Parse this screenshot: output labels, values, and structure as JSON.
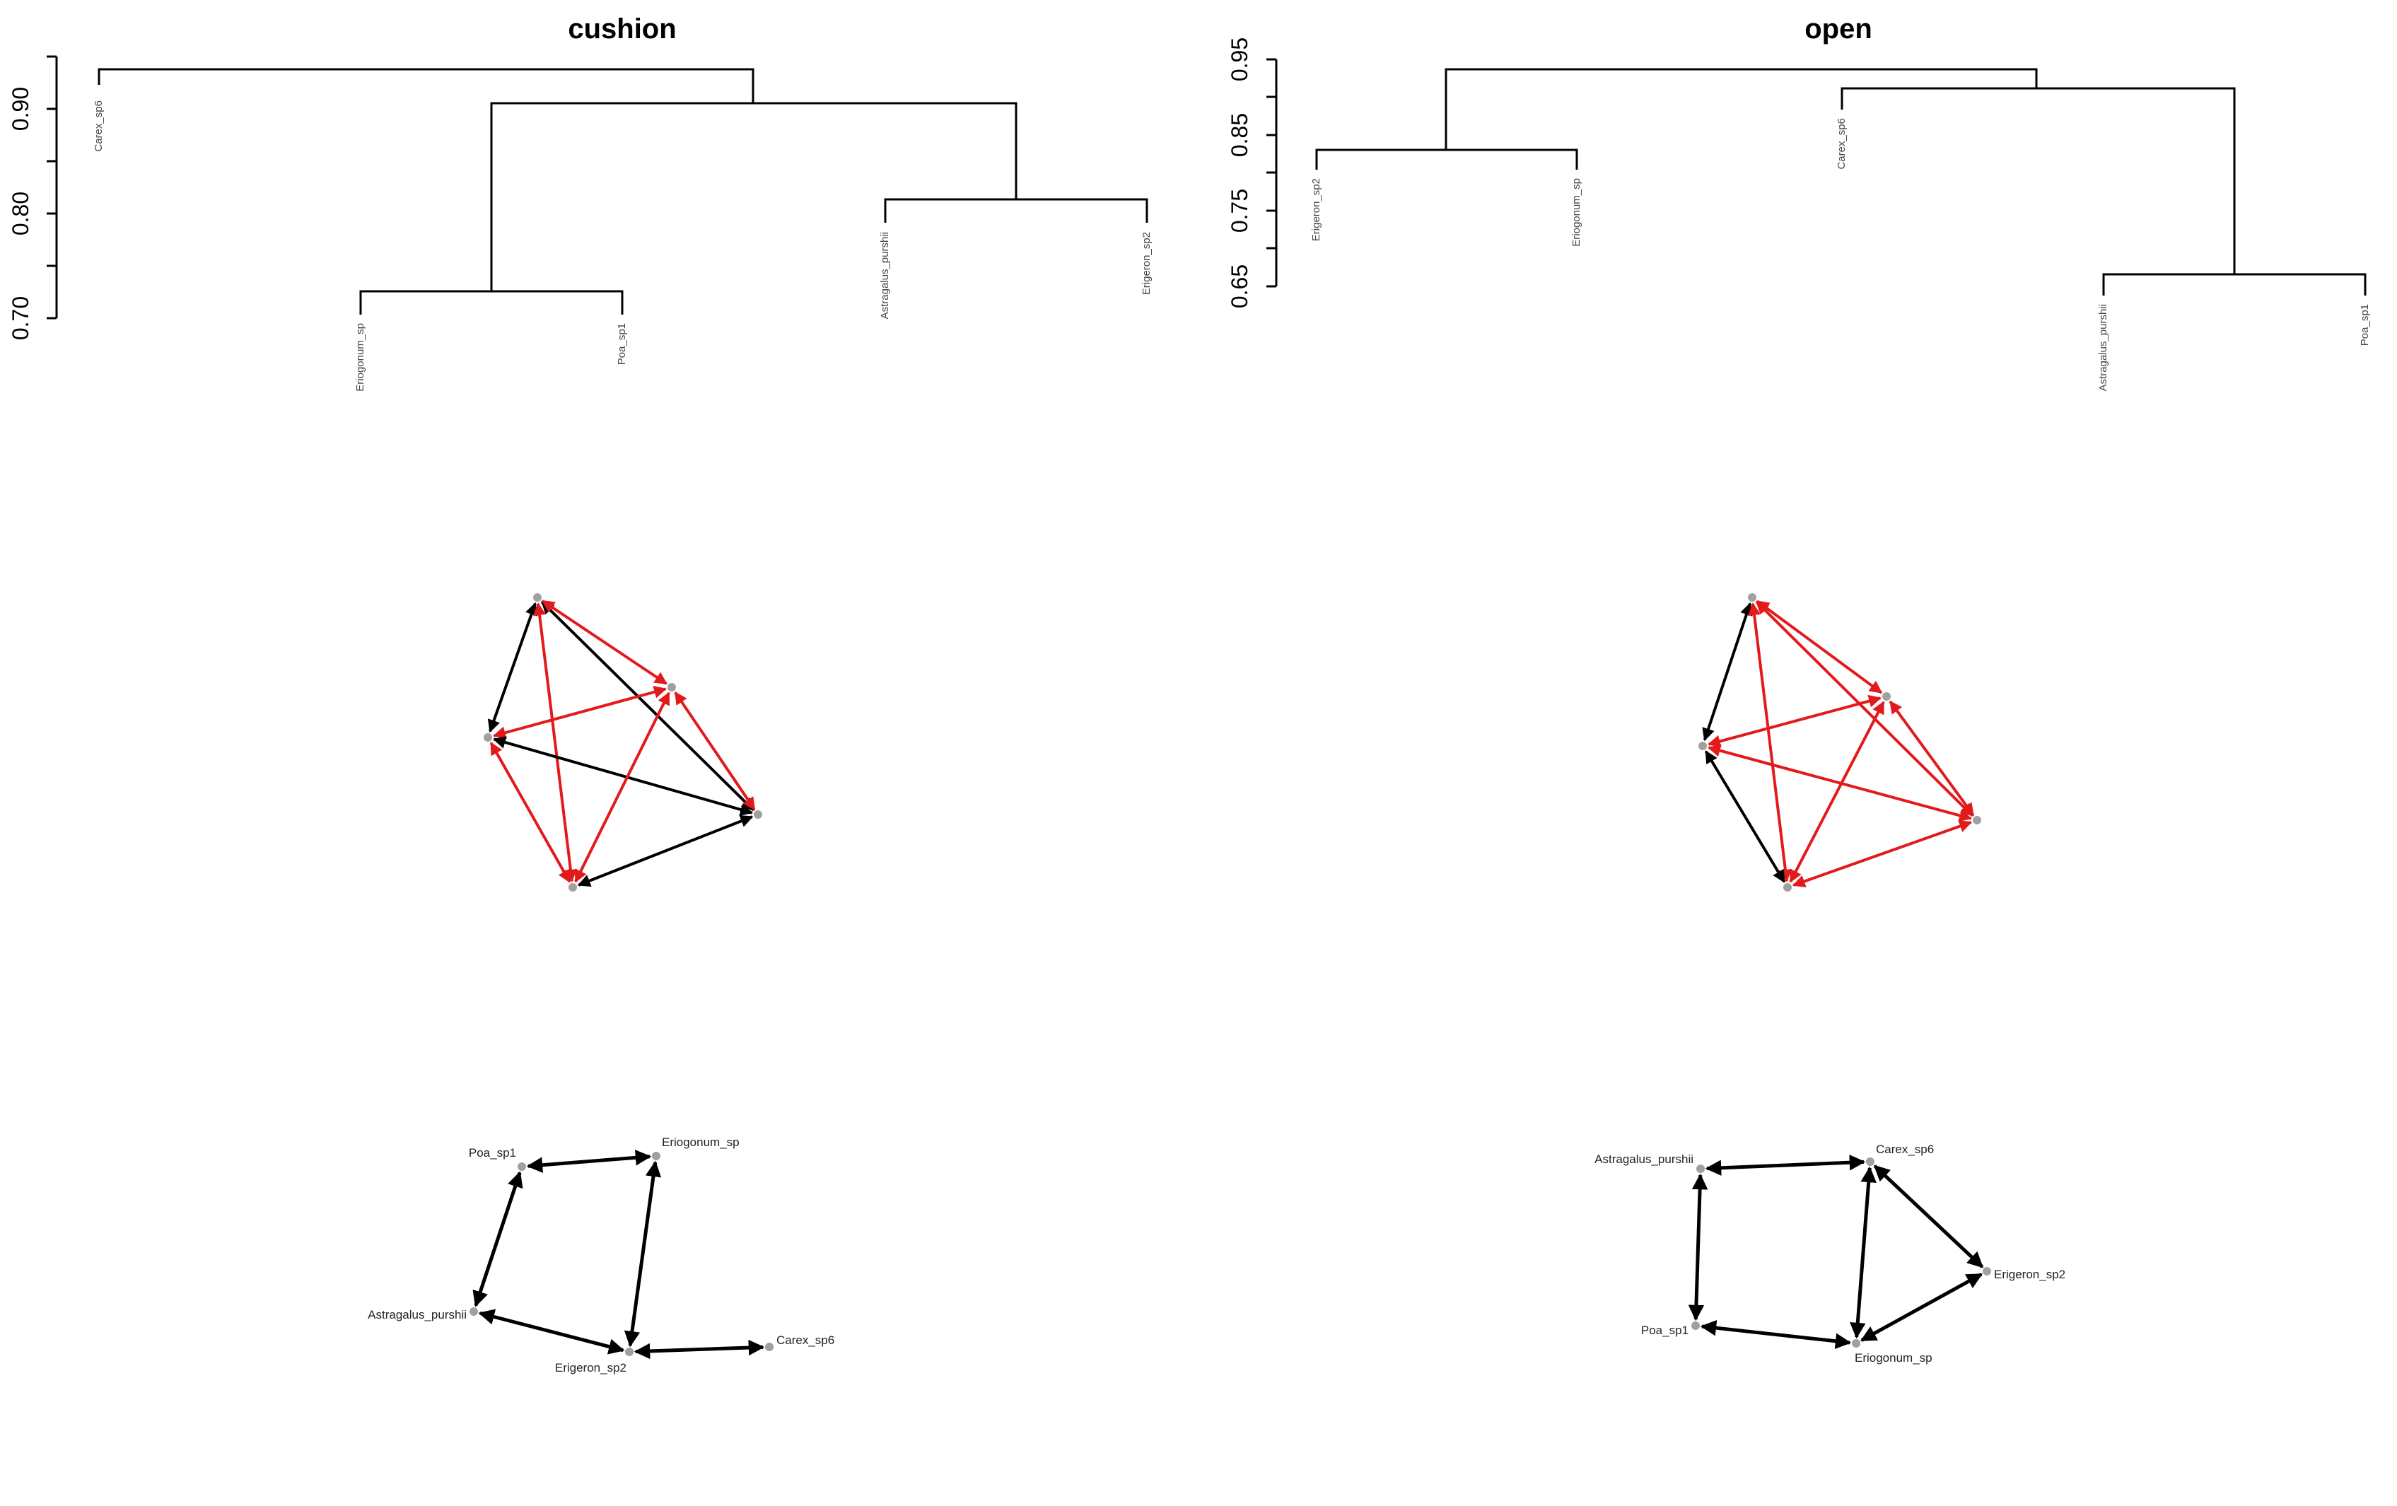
{
  "colors": {
    "background": "#ffffff",
    "line": "#000000",
    "edge_negative": "#e31a1c",
    "edge_positive": "#000000",
    "node": "#a0a0a0"
  },
  "dendrograms": [
    {
      "id": "cushion",
      "title": "cushion",
      "ticks": [
        "0.70",
        "0.80",
        "0.90"
      ],
      "leaves": [
        "Carex_sp6",
        "Eriogonum_sp",
        "Poa_sp1",
        "Astragalus_purshii",
        "Erigeron_sp2"
      ]
    },
    {
      "id": "open",
      "title": "open",
      "ticks": [
        "0.65",
        "0.75",
        "0.85",
        "0.95"
      ],
      "leaves": [
        "Erigeron_sp2",
        "Eriogonum_sp",
        "Carex_sp6",
        "Astragalus_purshii",
        "Poa_sp1"
      ]
    }
  ],
  "labeled_networks": [
    {
      "id": "cushion",
      "nodes": [
        "Poa_sp1",
        "Eriogonum_sp",
        "Astragalus_purshii",
        "Erigeron_sp2",
        "Carex_sp6"
      ],
      "edges": [
        {
          "from": "Eriogonum_sp",
          "to": "Poa_sp1",
          "sign": "positive"
        },
        {
          "from": "Poa_sp1",
          "to": "Astragalus_purshii",
          "sign": "positive"
        },
        {
          "from": "Astragalus_purshii",
          "to": "Erigeron_sp2",
          "sign": "positive"
        },
        {
          "from": "Eriogonum_sp",
          "to": "Erigeron_sp2",
          "sign": "positive"
        },
        {
          "from": "Carex_sp6",
          "to": "Erigeron_sp2",
          "sign": "positive"
        }
      ]
    },
    {
      "id": "open",
      "nodes": [
        "Astragalus_purshii",
        "Carex_sp6",
        "Erigeron_sp2",
        "Poa_sp1",
        "Eriogonum_sp"
      ],
      "edges": [
        {
          "from": "Carex_sp6",
          "to": "Astragalus_purshii",
          "sign": "positive"
        },
        {
          "from": "Astragalus_purshii",
          "to": "Poa_sp1",
          "sign": "positive"
        },
        {
          "from": "Poa_sp1",
          "to": "Eriogonum_sp",
          "sign": "positive"
        },
        {
          "from": "Eriogonum_sp",
          "to": "Carex_sp6",
          "sign": "positive"
        },
        {
          "from": "Carex_sp6",
          "to": "Erigeron_sp2",
          "sign": "positive"
        },
        {
          "from": "Erigeron_sp2",
          "to": "Eriogonum_sp",
          "sign": "positive"
        }
      ]
    }
  ],
  "unlabeled_networks": [
    {
      "id": "cushion",
      "edges": [
        {
          "from": 0,
          "to": 1,
          "sign": "positive"
        },
        {
          "from": 0,
          "to": 3,
          "sign": "positive"
        },
        {
          "from": 0,
          "to": 2,
          "sign": "negative"
        },
        {
          "from": 0,
          "to": 4,
          "sign": "negative"
        },
        {
          "from": 1,
          "to": 2,
          "sign": "negative"
        },
        {
          "from": 1,
          "to": 4,
          "sign": "negative"
        },
        {
          "from": 1,
          "to": 3,
          "sign": "positive"
        },
        {
          "from": 2,
          "to": 4,
          "sign": "negative"
        },
        {
          "from": 2,
          "to": 3,
          "sign": "negative"
        },
        {
          "from": 3,
          "to": 4,
          "sign": "positive"
        }
      ]
    },
    {
      "id": "open",
      "edges": [
        {
          "from": 0,
          "to": 1,
          "sign": "positive"
        },
        {
          "from": 0,
          "to": 2,
          "sign": "negative"
        },
        {
          "from": 0,
          "to": 3,
          "sign": "negative"
        },
        {
          "from": 0,
          "to": 4,
          "sign": "negative"
        },
        {
          "from": 1,
          "to": 2,
          "sign": "negative"
        },
        {
          "from": 1,
          "to": 3,
          "sign": "negative"
        },
        {
          "from": 1,
          "to": 4,
          "sign": "positive"
        },
        {
          "from": 2,
          "to": 3,
          "sign": "negative"
        },
        {
          "from": 2,
          "to": 4,
          "sign": "negative"
        },
        {
          "from": 3,
          "to": 4,
          "sign": "negative"
        }
      ]
    }
  ]
}
